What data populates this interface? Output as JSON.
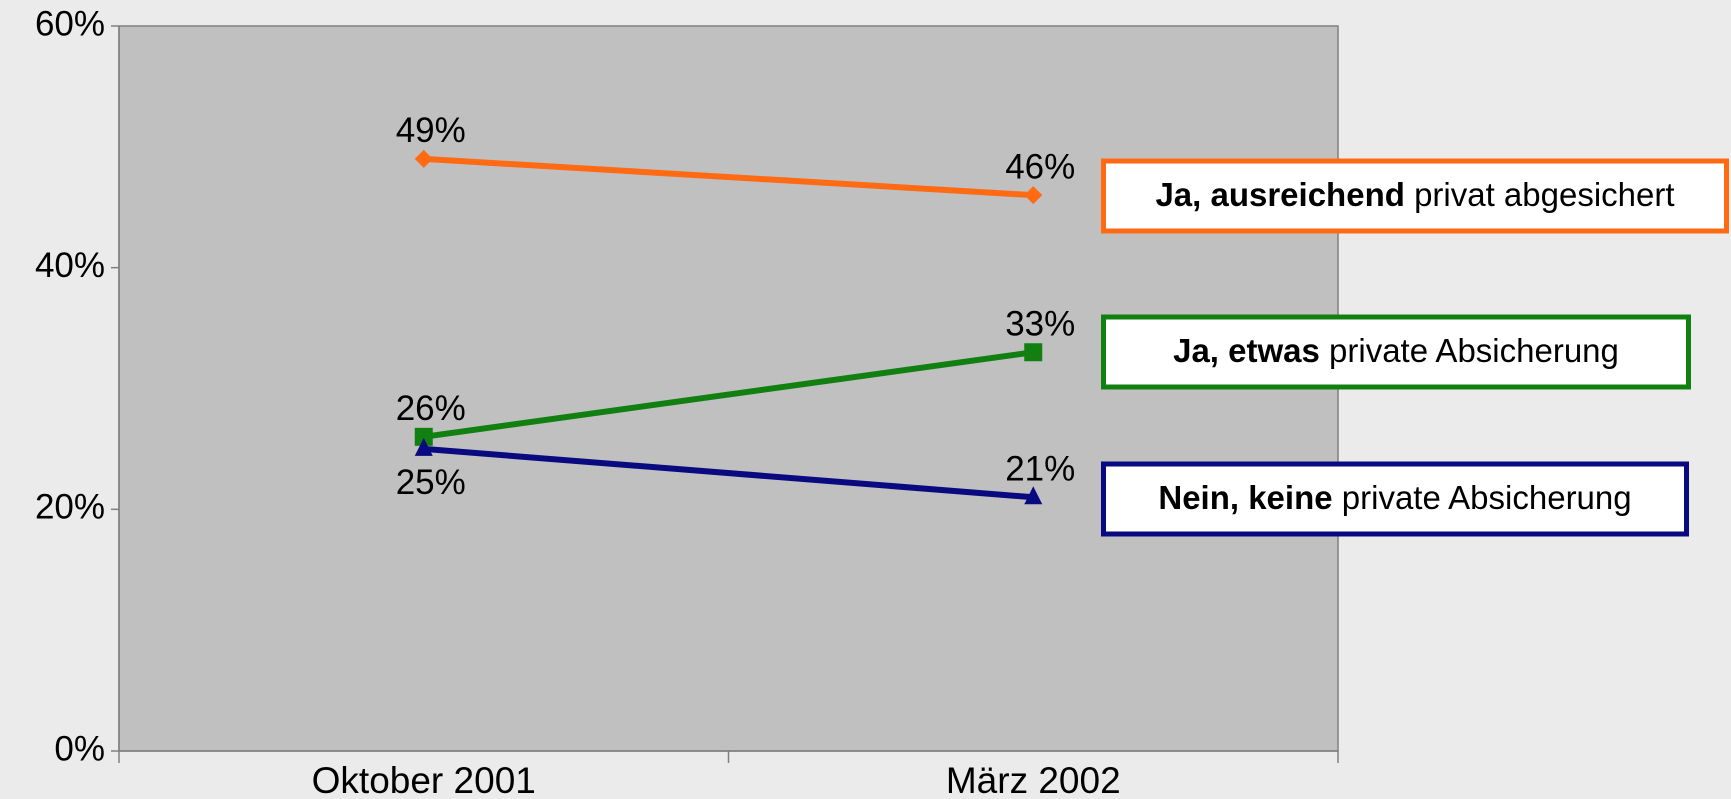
{
  "chart_data": {
    "type": "line",
    "categories": [
      "Oktober 2001",
      "März 2002"
    ],
    "series": [
      {
        "name": "Ja, ausreichend privat abgesichert",
        "name_bold_words": 2,
        "color": "#ff6a13",
        "marker": "diamond",
        "values": [
          49,
          46
        ],
        "value_labels": [
          "49%",
          "46%"
        ],
        "value_label_positions": [
          "above",
          "above"
        ]
      },
      {
        "name": "Ja, etwas private Absicherung",
        "name_bold_words": 2,
        "color": "#118011",
        "marker": "square",
        "values": [
          26,
          33
        ],
        "value_labels": [
          "26%",
          "33%"
        ],
        "value_label_positions": [
          "above",
          "above"
        ]
      },
      {
        "name": "Nein, keine private Absicherung",
        "name_bold_words": 2,
        "color": "#0a0a80",
        "marker": "triangle",
        "values": [
          25,
          21
        ],
        "value_labels": [
          "25%",
          "21%"
        ],
        "value_label_positions": [
          "below",
          "above"
        ]
      }
    ],
    "ylim": [
      0,
      60
    ],
    "yticks": [
      {
        "value": 0,
        "label": "0%"
      },
      {
        "value": 20,
        "label": "20%"
      },
      {
        "value": 40,
        "label": "40%"
      },
      {
        "value": 60,
        "label": "60%"
      }
    ],
    "grid": false
  }
}
